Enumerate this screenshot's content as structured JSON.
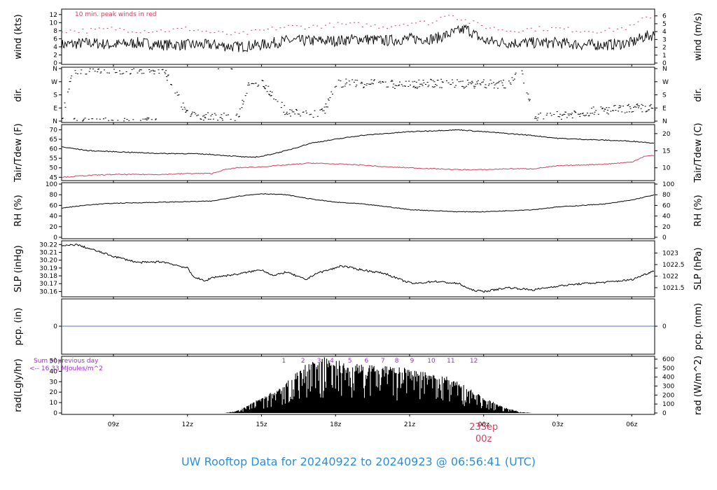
{
  "title": "UW Rooftop Data for 20240922  to  20240923 @ 06:56:41  (UTC)",
  "x_axis": {
    "ticks": [
      "09z",
      "12z",
      "15z",
      "18z",
      "21z",
      "00z",
      "03z",
      "06z"
    ],
    "tick_hours": [
      9,
      12,
      15,
      18,
      21,
      24,
      27,
      30
    ],
    "range_hours": [
      6.9,
      30.93
    ],
    "date_label": "23Sep",
    "date_hour_label": "00z"
  },
  "colors": {
    "primary": "#000000",
    "secondary": "#d04060",
    "precip": "#4a78c0",
    "annotation": "#9933cc",
    "title": "#2c8fd6"
  },
  "panels": {
    "wind": {
      "ylabel_left": "wind (kts)",
      "ylabel_right": "wind (m/s)",
      "left_ticks": [
        0,
        2,
        4,
        6,
        8,
        10,
        12
      ],
      "right_ticks": [
        0,
        1,
        2,
        3,
        4,
        5,
        6
      ],
      "ylim": [
        0,
        13
      ],
      "note": "10 min. peak winds in red"
    },
    "dir": {
      "ylabel_left": "dir.",
      "ylabel_right": "dir.",
      "ticks": [
        "N",
        "E",
        "S",
        "W",
        "N"
      ],
      "ylim": [
        0,
        360
      ]
    },
    "temp": {
      "ylabel_left": "Tair/Tdew (F)",
      "ylabel_right": "Tair/Tdew (C)",
      "left_ticks": [
        45,
        50,
        55,
        60,
        65,
        70
      ],
      "right_ticks": [
        10,
        15,
        20
      ],
      "ylim": [
        44,
        72
      ]
    },
    "rh": {
      "ylabel_left": "RH (%)",
      "ylabel_right": "RH (%)",
      "ticks": [
        0,
        20,
        40,
        60,
        80,
        100
      ],
      "ylim": [
        0,
        100
      ]
    },
    "slp": {
      "ylabel_left": "SLP (inHg)",
      "ylabel_right": "SLP (hPa)",
      "left_ticks": [
        "30.16",
        "30.17",
        "30.18",
        "30.19",
        "30.20",
        "30.21",
        "30.22"
      ],
      "right_ticks": [
        "1021.5",
        "1022",
        "1022.5",
        "1023"
      ],
      "ylim": [
        30.155,
        30.223
      ]
    },
    "pcp": {
      "ylabel_left": "pcp. (in)",
      "ylabel_right": "pcp. (mm)",
      "left_ticks": [
        0
      ],
      "right_ticks": [
        0
      ]
    },
    "rad": {
      "ylabel_left": "rad(Lgly/hr)",
      "ylabel_right": "rad (W/m^2)",
      "left_ticks": [
        0,
        10,
        20,
        30,
        40,
        50
      ],
      "right_ticks": [
        0,
        100,
        200,
        300,
        400,
        500,
        600
      ],
      "ylim": [
        0,
        53
      ],
      "note_line1": "Sum of previous day",
      "note_line2": "<-- 16.33 MJoules/m^2",
      "hour_labels": [
        "1",
        "2",
        "3",
        "4",
        "5",
        "6",
        "7",
        "8",
        "9",
        "10",
        "11",
        "12"
      ],
      "hour_label_positions": [
        15.9,
        16.68,
        17.33,
        17.85,
        18.58,
        19.25,
        19.92,
        20.48,
        21.1,
        21.88,
        22.67,
        23.6
      ]
    }
  },
  "chart_data": {
    "type": "line",
    "x_units": "hour UTC from 2024-09-22 00z",
    "x_range": [
      6.9,
      30.93
    ],
    "series": [
      {
        "panel": "wind",
        "units": "kts",
        "x": [
          6.9,
          8,
          9,
          10,
          11,
          12,
          13,
          14,
          15,
          16,
          17,
          18,
          19,
          20,
          21,
          22,
          22.8,
          23.3,
          24,
          25,
          26,
          27,
          28,
          29,
          30,
          30.5,
          30.93
        ],
        "values": [
          4.5,
          5,
          4.5,
          5,
          4.5,
          4.5,
          4.5,
          4,
          4.5,
          5.5,
          5.5,
          5.5,
          6,
          5.5,
          6,
          6,
          7.5,
          8.5,
          5.5,
          5,
          5,
          5,
          4.5,
          4.5,
          5,
          6.5,
          7
        ]
      },
      {
        "panel": "wind",
        "label": "10 min. peak winds",
        "units": "kts",
        "x": [
          6.9,
          8,
          9,
          10,
          11,
          12,
          13,
          14,
          15,
          16,
          17,
          18,
          19,
          20,
          21,
          22,
          22.5,
          23,
          24,
          25,
          26,
          27,
          28,
          29,
          30,
          30.5,
          30.93
        ],
        "values": [
          8,
          8,
          8.5,
          8,
          8,
          8.5,
          7.5,
          7,
          8,
          9,
          9,
          9.5,
          9.5,
          9,
          10,
          10,
          12.5,
          11,
          9,
          8,
          8.5,
          8.5,
          8,
          8,
          9,
          11,
          12
        ]
      },
      {
        "panel": "dir",
        "units": "deg",
        "x": [
          6.9,
          7.3,
          8,
          8.8,
          9,
          10,
          11,
          12,
          13,
          14,
          14.5,
          15,
          16,
          17,
          17.5,
          18,
          19,
          20,
          21,
          22,
          23,
          23.5,
          24,
          25,
          25.5,
          26,
          27,
          28,
          29,
          30,
          30.93
        ],
        "values": [
          20,
          355,
          350,
          355,
          350,
          355,
          350,
          40,
          30,
          20,
          280,
          260,
          60,
          50,
          60,
          260,
          260,
          255,
          250,
          260,
          255,
          250,
          255,
          250,
          355,
          20,
          40,
          60,
          75,
          90,
          85
        ]
      },
      {
        "panel": "temp",
        "label": "Tair",
        "units": "F",
        "x": [
          6.9,
          8,
          9,
          10,
          11,
          12,
          13,
          14,
          14.5,
          15,
          16,
          17,
          18,
          19,
          20,
          21,
          22,
          23,
          24,
          25,
          26,
          27,
          28,
          29,
          30,
          30.93
        ],
        "values": [
          61,
          59,
          58.5,
          58,
          57.5,
          57.5,
          57,
          56,
          55.5,
          56,
          59,
          63,
          65,
          67,
          68,
          69,
          69.5,
          70,
          69,
          68,
          67,
          65.5,
          65,
          64.5,
          64,
          63
        ]
      },
      {
        "panel": "temp",
        "label": "Tdew",
        "units": "F",
        "x": [
          6.9,
          8,
          9,
          10,
          11,
          12,
          13,
          13.5,
          14,
          15,
          16,
          17,
          18,
          19,
          20,
          21,
          22,
          23,
          24,
          25,
          26,
          27,
          28,
          29,
          30,
          30.5,
          30.93
        ],
        "values": [
          45,
          46,
          46.5,
          46.5,
          46.5,
          47,
          47,
          49,
          50,
          50.5,
          51.5,
          52.5,
          52,
          51.5,
          50.5,
          50,
          49.5,
          49,
          49,
          49.5,
          49.5,
          51,
          51.5,
          52,
          53,
          56,
          56.5
        ]
      },
      {
        "panel": "rh",
        "units": "%",
        "x": [
          6.9,
          8,
          9,
          10,
          11,
          12,
          13,
          14,
          15,
          16,
          17,
          18,
          19,
          20,
          21,
          22,
          23,
          24,
          25,
          26,
          27,
          28,
          29,
          30,
          30.93
        ],
        "values": [
          55,
          61,
          64,
          65,
          66,
          67,
          68,
          77,
          82,
          80,
          72,
          66,
          63,
          58,
          52,
          50,
          48,
          48,
          50,
          52,
          57,
          60,
          63,
          70,
          80
        ]
      },
      {
        "panel": "slp",
        "units": "inHg",
        "x": [
          6.9,
          7.5,
          8,
          9,
          10,
          11,
          12,
          12.2,
          12.7,
          13,
          14,
          15,
          15.5,
          16,
          16.8,
          17.2,
          18,
          18.2,
          19,
          20,
          20.8,
          21.2,
          22,
          23,
          23.5,
          24,
          25,
          26,
          27,
          28,
          29,
          30,
          30.93
        ],
        "values": [
          30.218,
          30.22,
          30.215,
          30.205,
          30.197,
          30.198,
          30.19,
          30.18,
          30.173,
          30.178,
          30.182,
          30.188,
          30.18,
          30.185,
          30.175,
          30.183,
          30.19,
          30.193,
          30.188,
          30.183,
          30.173,
          30.17,
          30.173,
          30.17,
          30.162,
          30.16,
          30.165,
          30.162,
          30.167,
          30.17,
          30.172,
          30.175,
          30.187
        ]
      },
      {
        "panel": "pcp",
        "units": "in",
        "x": [
          6.9,
          30.93
        ],
        "values": [
          0,
          0
        ]
      },
      {
        "panel": "rad",
        "type": "bar",
        "units": "Lgly/hr",
        "x": [
          13.5,
          14,
          14.5,
          15,
          15.5,
          16,
          16.5,
          17,
          17.5,
          18,
          18.5,
          19,
          19.5,
          20,
          20.5,
          21,
          21.5,
          22,
          22.5,
          23,
          23.5,
          24,
          24.5,
          25,
          25.5,
          26
        ],
        "values": [
          0,
          2,
          8,
          14,
          20,
          28,
          40,
          48,
          52,
          50,
          46,
          45,
          44,
          43,
          42,
          41,
          38,
          36,
          34,
          28,
          22,
          14,
          9,
          4,
          1,
          0
        ]
      }
    ]
  }
}
